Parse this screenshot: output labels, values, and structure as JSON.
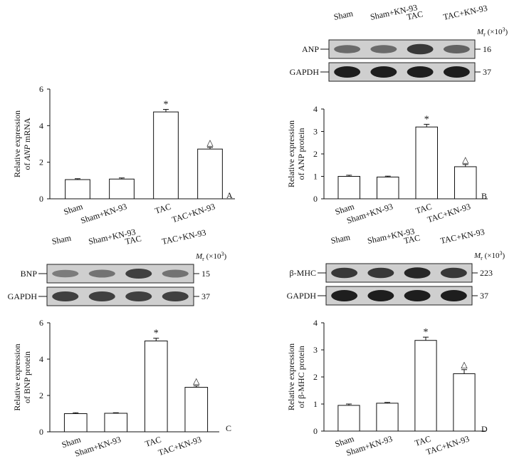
{
  "chart_data": [
    {
      "type": "bar",
      "panel_label": "A",
      "categories": [
        "Sham",
        "Sham+KN-93",
        "TAC",
        "TAC+KN-93"
      ],
      "values": [
        1.05,
        1.08,
        4.75,
        2.72
      ],
      "errors": [
        0.05,
        0.06,
        0.14,
        0.09
      ],
      "markers": [
        "",
        "",
        "*",
        "△"
      ],
      "ylabel_line1": "Relative expression",
      "ylabel_line2_prefix": "of ",
      "ylabel_line2_italic": "ANP",
      "ylabel_line2_suffix": " mRNA",
      "ylim": [
        0,
        6
      ],
      "yticks": [
        "0",
        "2",
        "4",
        "6"
      ],
      "grid": false,
      "blots": []
    },
    {
      "type": "bar",
      "panel_label": "B",
      "categories": [
        "Sham",
        "Sham+KN-93",
        "TAC",
        "TAC+KN-93"
      ],
      "values": [
        1.0,
        0.97,
        3.2,
        1.43
      ],
      "errors": [
        0.05,
        0.04,
        0.12,
        0.1
      ],
      "markers": [
        "",
        "",
        "*",
        "△"
      ],
      "ylabel_line1": "Relative expression",
      "ylabel_line2_prefix": "of ANP protein",
      "ylabel_line2_italic": "",
      "ylabel_line2_suffix": "",
      "ylim": [
        0,
        4
      ],
      "yticks": [
        "0",
        "1",
        "2",
        "3",
        "4"
      ],
      "grid": false,
      "mr_label_italic": "M",
      "mr_label_sub": "r",
      "mr_label_rest": " (×10",
      "mr_label_sup": "3",
      "mr_label_close": ")",
      "blot_lane_labels": [
        "Sham",
        "Sham+KN-93",
        "TAC",
        "TAC+KN-93"
      ],
      "blots": [
        {
          "name": "ANP",
          "mw": "16",
          "intensity": [
            0.55,
            0.55,
            0.85,
            0.6
          ]
        },
        {
          "name": "GAPDH",
          "mw": "37",
          "intensity": [
            1.0,
            1.0,
            1.0,
            1.0
          ]
        }
      ]
    },
    {
      "type": "bar",
      "panel_label": "C",
      "categories": [
        "Sham",
        "Sham+KN-93",
        "TAC",
        "TAC+KN-93"
      ],
      "values": [
        1.0,
        1.02,
        5.0,
        2.45
      ],
      "errors": [
        0.05,
        0.03,
        0.15,
        0.08
      ],
      "markers": [
        "",
        "",
        "*",
        "△"
      ],
      "ylabel_line1": "Relative expression",
      "ylabel_line2_prefix": "of BNP protein",
      "ylabel_line2_italic": "",
      "ylabel_line2_suffix": "",
      "ylim": [
        0,
        6
      ],
      "yticks": [
        "0",
        "2",
        "4",
        "6"
      ],
      "grid": false,
      "mr_label_italic": "M",
      "mr_label_sub": "r",
      "mr_label_rest": " (×10",
      "mr_label_sup": "3",
      "mr_label_close": ")",
      "blot_lane_labels": [
        "Sham",
        "Sham+KN-93",
        "TAC",
        "TAC+KN-93"
      ],
      "blots": [
        {
          "name": "BNP",
          "mw": "15",
          "intensity": [
            0.45,
            0.5,
            0.8,
            0.5
          ]
        },
        {
          "name": "GAPDH",
          "mw": "37",
          "intensity": [
            0.8,
            0.8,
            0.8,
            0.8
          ]
        }
      ]
    },
    {
      "type": "bar",
      "panel_label": "D",
      "categories": [
        "Sham",
        "Sham+KN-93",
        "TAC",
        "TAC+KN-93"
      ],
      "values": [
        0.95,
        1.03,
        3.35,
        2.12
      ],
      "errors": [
        0.05,
        0.03,
        0.12,
        0.15
      ],
      "markers": [
        "",
        "",
        "*",
        "△"
      ],
      "ylabel_line1": "Relative expression",
      "ylabel_line2_prefix": "of β-MHC protein",
      "ylabel_line2_italic": "",
      "ylabel_line2_suffix": "",
      "ylim": [
        0,
        4
      ],
      "yticks": [
        "0",
        "1",
        "2",
        "3",
        "4"
      ],
      "grid": false,
      "mr_label_italic": "M",
      "mr_label_sub": "r",
      "mr_label_rest": " (×10",
      "mr_label_sup": "3",
      "mr_label_close": ")",
      "blot_lane_labels": [
        "Sham",
        "Sham+KN-93",
        "TAC",
        "TAC+KN-93"
      ],
      "blots": [
        {
          "name": "β-MHC",
          "mw": "223",
          "intensity": [
            0.85,
            0.85,
            0.95,
            0.85
          ]
        },
        {
          "name": "GAPDH",
          "mw": "37",
          "intensity": [
            1.0,
            1.0,
            1.0,
            1.0
          ]
        }
      ]
    }
  ]
}
